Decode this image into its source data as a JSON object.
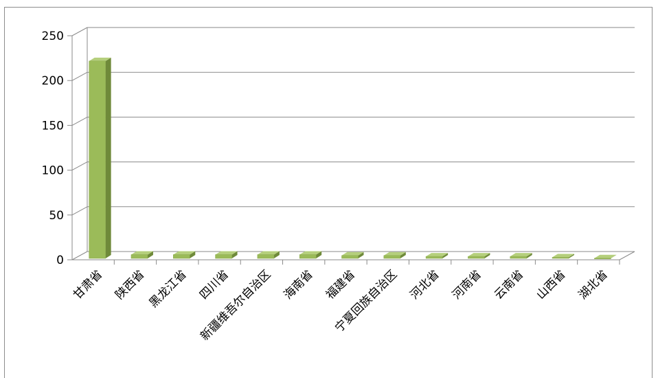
{
  "chart_data": {
    "type": "bar",
    "categories": [
      "甘肃省",
      "陕西省",
      "黑龙江省",
      "四川省",
      "新疆维吾尔自治区",
      "海南省",
      "福建省",
      "宁夏回族自治区",
      "河北省",
      "河南省",
      "云南省",
      "山西省",
      "湖北省"
    ],
    "values": [
      221,
      5,
      5,
      5,
      5,
      5,
      4,
      4,
      3,
      3,
      3,
      2,
      1
    ],
    "title": "",
    "xlabel": "",
    "ylabel": "",
    "ylim": [
      0,
      250
    ],
    "yticks": [
      0,
      50,
      100,
      150,
      200,
      250
    ],
    "grid": true,
    "legend": "none",
    "bar_color": "#9bbb59",
    "bar_side_color": "#6f8a3a",
    "bar_top_color": "#b5cf7c"
  }
}
